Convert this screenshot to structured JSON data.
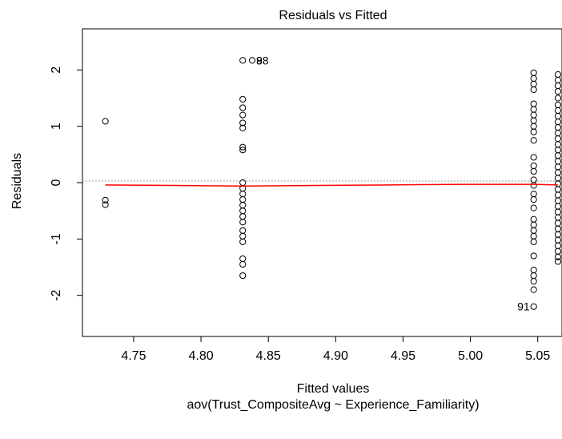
{
  "chart_data": {
    "type": "scatter",
    "title": "Residuals vs Fitted",
    "xlabel": "Fitted values",
    "subtitle": "aov(Trust_CompositeAvg ~ Experience_Familiarity)",
    "ylabel": "Residuals",
    "xlim": [
      4.712,
      5.068
    ],
    "ylim": [
      -2.73,
      2.73
    ],
    "x_ticks": [
      "4.75",
      "4.80",
      "4.85",
      "4.90",
      "4.95",
      "5.00",
      "5.05"
    ],
    "y_ticks": [
      "-2",
      "-1",
      "0",
      "1",
      "2"
    ],
    "grid": false,
    "reference_line": {
      "y": 0,
      "style": "dotted",
      "color": "#999999"
    },
    "smoother": {
      "color": "#ff0000",
      "x": [
        4.729,
        4.78,
        4.831,
        4.886,
        4.94,
        4.995,
        5.047,
        5.065
      ],
      "y": [
        -0.04,
        -0.05,
        -0.06,
        -0.05,
        -0.04,
        -0.03,
        -0.03,
        -0.04
      ]
    },
    "series": [
      {
        "x": 4.729,
        "y": [
          1.09,
          -0.31,
          -0.39
        ]
      },
      {
        "x": 4.831,
        "y": [
          2.17,
          1.48,
          1.33,
          1.2,
          1.06,
          0.97,
          0.63,
          0.58,
          0.0,
          -0.1,
          -0.2,
          -0.3,
          -0.4,
          -0.5,
          -0.6,
          -0.7,
          -0.85,
          -0.95,
          -1.05,
          -1.35,
          -1.45,
          -1.65
        ]
      },
      {
        "x": 4.838,
        "y": [
          2.17
        ]
      },
      {
        "x": 5.047,
        "y": [
          1.95,
          1.85,
          1.75,
          1.65,
          1.4,
          1.3,
          1.2,
          1.1,
          1.0,
          0.9,
          0.75,
          0.45,
          0.3,
          0.2,
          0.05,
          -0.05,
          -0.2,
          -0.3,
          -0.45,
          -0.65,
          -0.75,
          -0.85,
          -0.95,
          -1.05,
          -1.3,
          -1.55,
          -1.65,
          -1.75,
          -1.9,
          -2.2
        ]
      },
      {
        "x": 5.065,
        "y": [
          1.92,
          1.82,
          1.72,
          1.62,
          1.5,
          1.38,
          1.28,
          1.18,
          1.08,
          0.98,
          0.88,
          0.78,
          0.68,
          0.58,
          0.48,
          0.38,
          0.28,
          0.18,
          0.08,
          -0.02,
          -0.12,
          -0.22,
          -0.32,
          -0.42,
          -0.52,
          -0.62,
          -0.72,
          -0.82,
          -0.92,
          -1.02,
          -1.12,
          -1.22,
          -1.32,
          -1.4
        ]
      }
    ],
    "annotations": [
      {
        "text": "98",
        "x": 4.838,
        "y": 2.17,
        "anchor": "right"
      },
      {
        "text": "8",
        "x": 4.838,
        "y": 2.17,
        "anchor": "right"
      },
      {
        "text": "91",
        "x": 5.047,
        "y": -2.2,
        "anchor": "left"
      }
    ]
  }
}
